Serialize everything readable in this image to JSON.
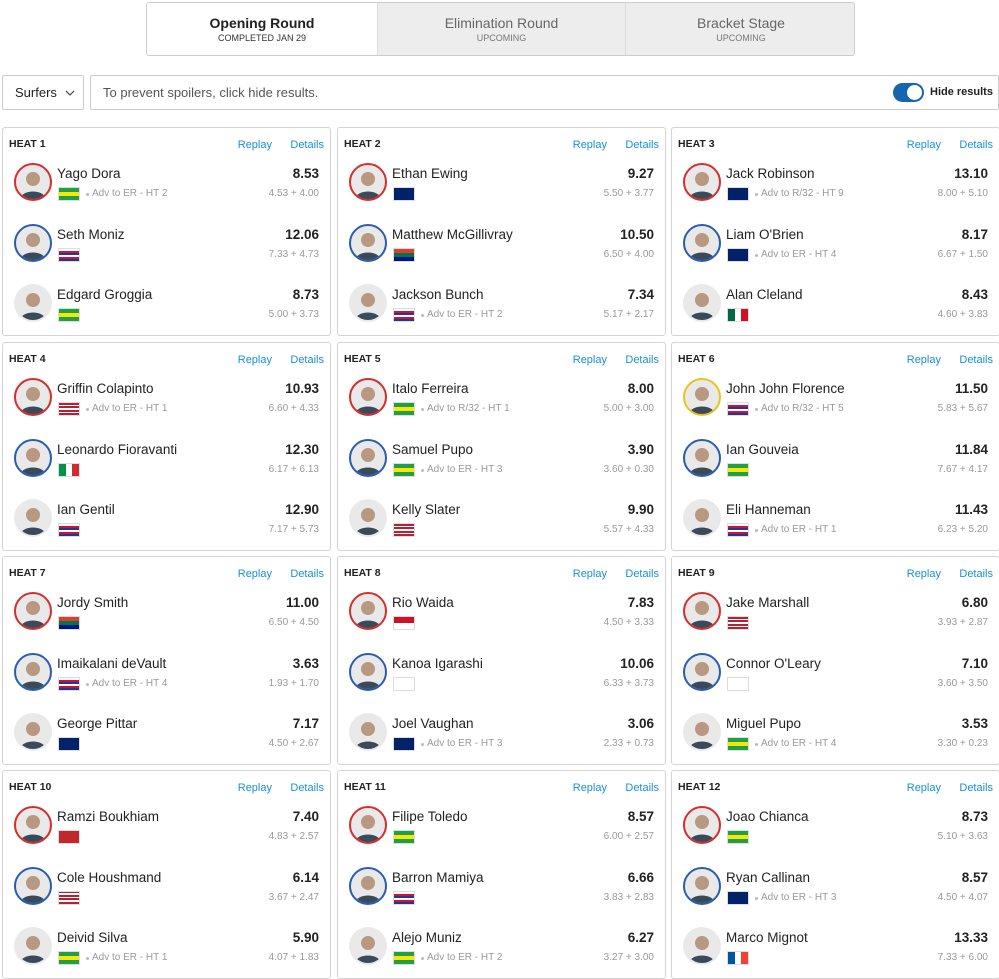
{
  "tabs": [
    {
      "title": "Opening Round",
      "status": "COMPLETED JAN 29"
    },
    {
      "title": "Elimination Round",
      "status": "UPCOMING"
    },
    {
      "title": "Bracket Stage",
      "status": "UPCOMING"
    }
  ],
  "filter": {
    "dropdown": "Surfers",
    "message": "To prevent spoilers, click hide results.",
    "toggle": "Hide results"
  },
  "replay": "Replay",
  "details": "Details",
  "heats": [
    {
      "title": "HEAT 1",
      "surfers": [
        {
          "name": "Yago Dora",
          "note": "Adv to ER - HT 2",
          "score": "8.53",
          "waves": "4.53 + 4.00",
          "flag": [
            "#229e45",
            "#f8e509",
            "#229e45"
          ],
          "ring": "#d62d2d"
        },
        {
          "name": "Seth Moniz",
          "score": "12.06",
          "waves": "7.33 + 4.73",
          "flag": [
            "#ffffff",
            "#d0103a",
            "#1e3a8a",
            "#ffffff",
            "#d0103a",
            "#1e3a8a"
          ],
          "ring": "#2a5db0"
        },
        {
          "name": "Edgard Groggia",
          "score": "8.73",
          "waves": "5.00 + 3.73",
          "flag": [
            "#229e45",
            "#f8e509",
            "#229e45"
          ]
        }
      ]
    },
    {
      "title": "HEAT 2",
      "surfers": [
        {
          "name": "Ethan Ewing",
          "score": "9.27",
          "waves": "5.50 + 3.77",
          "flag": [
            "#012169"
          ],
          "ring": "#d62d2d"
        },
        {
          "name": "Matthew McGillivray",
          "score": "10.50",
          "waves": "6.50 + 4.00",
          "flag": [
            "#e03c31",
            "#007749",
            "#001489"
          ],
          "ring": "#2a5db0"
        },
        {
          "name": "Jackson Bunch",
          "note": "Adv to ER - HT 2",
          "score": "7.34",
          "waves": "5.17 + 2.17",
          "flag": [
            "#ffffff",
            "#d0103a",
            "#1e3a8a",
            "#ffffff",
            "#d0103a",
            "#1e3a8a"
          ]
        }
      ]
    },
    {
      "title": "HEAT 3",
      "surfers": [
        {
          "name": "Jack Robinson",
          "note": "Adv to R/32 - HT 9",
          "score": "13.10",
          "waves": "8.00 + 5.10",
          "flag": [
            "#012169"
          ],
          "ring": "#d62d2d"
        },
        {
          "name": "Liam O'Brien",
          "note": "Adv to ER - HT 4",
          "score": "8.17",
          "waves": "6.67 + 1.50",
          "flag": [
            "#012169"
          ],
          "ring": "#2a5db0"
        },
        {
          "name": "Alan Cleland",
          "score": "8.43",
          "waves": "4.60 + 3.83",
          "flag": [
            "#006847",
            "#ffffff",
            "#ce1126"
          ],
          "flag_v": true
        }
      ]
    },
    {
      "title": "HEAT 4",
      "surfers": [
        {
          "name": "Griffin Colapinto",
          "note": "Adv to ER - HT 1",
          "score": "10.93",
          "waves": "6.60 + 4.33",
          "flag": [
            "#b22234",
            "#ffffff",
            "#b22234",
            "#ffffff",
            "#b22234",
            "#ffffff",
            "#b22234"
          ],
          "ring": "#d62d2d"
        },
        {
          "name": "Leonardo Fioravanti",
          "score": "12.30",
          "waves": "6.17 + 6.13",
          "flag": [
            "#009246",
            "#ffffff",
            "#ce2b37"
          ],
          "flag_v": true,
          "ring": "#2a5db0"
        },
        {
          "name": "Ian Gentil",
          "score": "12.90",
          "waves": "7.17 + 5.73",
          "flag": [
            "#ffffff",
            "#d0103a",
            "#1e3a8a",
            "#ffffff",
            "#d0103a",
            "#1e3a8a"
          ]
        }
      ]
    },
    {
      "title": "HEAT 5",
      "surfers": [
        {
          "name": "Italo Ferreira",
          "note": "Adv to R/32 - HT 1",
          "score": "8.00",
          "waves": "5.00 + 3.00",
          "flag": [
            "#229e45",
            "#f8e509",
            "#229e45"
          ],
          "ring": "#d62d2d"
        },
        {
          "name": "Samuel Pupo",
          "note": "Adv to ER - HT 3",
          "score": "3.90",
          "waves": "3.60 + 0.30",
          "flag": [
            "#229e45",
            "#f8e509",
            "#229e45"
          ],
          "ring": "#2a5db0"
        },
        {
          "name": "Kelly Slater",
          "score": "9.90",
          "waves": "5.57 + 4.33",
          "flag": [
            "#b22234",
            "#ffffff",
            "#b22234",
            "#ffffff",
            "#b22234",
            "#ffffff",
            "#b22234"
          ]
        }
      ]
    },
    {
      "title": "HEAT 6",
      "surfers": [
        {
          "name": "John John Florence",
          "note": "Adv to R/32 - HT 5",
          "score": "11.50",
          "waves": "5.83 + 5.67",
          "flag": [
            "#ffffff",
            "#d0103a",
            "#1e3a8a",
            "#ffffff",
            "#d0103a",
            "#1e3a8a"
          ],
          "ring": "#e8c51c"
        },
        {
          "name": "Ian Gouveia",
          "score": "11.84",
          "waves": "7.67 + 4.17",
          "flag": [
            "#229e45",
            "#f8e509",
            "#229e45"
          ],
          "ring": "#2a5db0"
        },
        {
          "name": "Eli Hanneman",
          "note": "Adv to ER - HT 1",
          "score": "11.43",
          "waves": "6.23 + 5.20",
          "flag": [
            "#ffffff",
            "#d0103a",
            "#1e3a8a",
            "#ffffff",
            "#d0103a",
            "#1e3a8a"
          ]
        }
      ]
    },
    {
      "title": "HEAT 7",
      "surfers": [
        {
          "name": "Jordy Smith",
          "score": "11.00",
          "waves": "6.50 + 4.50",
          "flag": [
            "#e03c31",
            "#007749",
            "#001489"
          ],
          "ring": "#d62d2d"
        },
        {
          "name": "Imaikalani deVault",
          "note": "Adv to ER - HT 4",
          "score": "3.63",
          "waves": "1.93 + 1.70",
          "flag": [
            "#ffffff",
            "#d0103a",
            "#1e3a8a",
            "#ffffff",
            "#d0103a",
            "#1e3a8a"
          ],
          "ring": "#2a5db0"
        },
        {
          "name": "George Pittar",
          "score": "7.17",
          "waves": "4.50 + 2.67",
          "flag": [
            "#012169"
          ]
        }
      ]
    },
    {
      "title": "HEAT 8",
      "surfers": [
        {
          "name": "Rio Waida",
          "score": "7.83",
          "waves": "4.50 + 3.33",
          "flag": [
            "#ce1126",
            "#ffffff"
          ],
          "ring": "#d62d2d"
        },
        {
          "name": "Kanoa Igarashi",
          "score": "10.06",
          "waves": "6.33 + 3.73",
          "flag": [
            "#ffffff"
          ],
          "ring": "#2a5db0"
        },
        {
          "name": "Joel Vaughan",
          "note": "Adv to ER - HT 3",
          "score": "3.06",
          "waves": "2.33 + 0.73",
          "flag": [
            "#012169"
          ]
        }
      ]
    },
    {
      "title": "HEAT 9",
      "surfers": [
        {
          "name": "Jake Marshall",
          "score": "6.80",
          "waves": "3.93 + 2.87",
          "flag": [
            "#b22234",
            "#ffffff",
            "#b22234",
            "#ffffff",
            "#b22234",
            "#ffffff",
            "#b22234"
          ],
          "ring": "#d62d2d"
        },
        {
          "name": "Connor O'Leary",
          "score": "7.10",
          "waves": "3.60 + 3.50",
          "flag": [
            "#ffffff"
          ],
          "ring": "#2a5db0"
        },
        {
          "name": "Miguel Pupo",
          "note": "Adv to ER - HT 4",
          "score": "3.53",
          "waves": "3.30 + 0.23",
          "flag": [
            "#229e45",
            "#f8e509",
            "#229e45"
          ]
        }
      ]
    },
    {
      "title": "HEAT 10",
      "surfers": [
        {
          "name": "Ramzi Boukhiam",
          "score": "7.40",
          "waves": "4.83 + 2.57",
          "flag": [
            "#c1272d"
          ],
          "ring": "#d62d2d"
        },
        {
          "name": "Cole Houshmand",
          "score": "6.14",
          "waves": "3.67 + 2.47",
          "flag": [
            "#b22234",
            "#ffffff",
            "#b22234",
            "#ffffff",
            "#b22234",
            "#ffffff",
            "#b22234"
          ],
          "ring": "#2a5db0"
        },
        {
          "name": "Deivid Silva",
          "note": "Adv to ER - HT 1",
          "score": "5.90",
          "waves": "4.07 + 1.83",
          "flag": [
            "#229e45",
            "#f8e509",
            "#229e45"
          ]
        }
      ]
    },
    {
      "title": "HEAT 11",
      "surfers": [
        {
          "name": "Filipe Toledo",
          "score": "8.57",
          "waves": "6.00 + 2.57",
          "flag": [
            "#229e45",
            "#f8e509",
            "#229e45"
          ],
          "ring": "#d62d2d"
        },
        {
          "name": "Barron Mamiya",
          "score": "6.66",
          "waves": "3.83 + 2.83",
          "flag": [
            "#ffffff",
            "#d0103a",
            "#1e3a8a",
            "#ffffff",
            "#d0103a",
            "#1e3a8a"
          ],
          "ring": "#2a5db0"
        },
        {
          "name": "Alejo Muniz",
          "note": "Adv to ER - HT 2",
          "score": "6.27",
          "waves": "3.27 + 3.00",
          "flag": [
            "#229e45",
            "#f8e509",
            "#229e45"
          ]
        }
      ]
    },
    {
      "title": "HEAT 12",
      "surfers": [
        {
          "name": "Joao Chianca",
          "score": "8.73",
          "waves": "5.10 + 3.63",
          "flag": [
            "#229e45",
            "#f8e509",
            "#229e45"
          ],
          "ring": "#d62d2d"
        },
        {
          "name": "Ryan Callinan",
          "note": "Adv to ER - HT 3",
          "score": "8.57",
          "waves": "4.50 + 4.07",
          "flag": [
            "#012169"
          ],
          "ring": "#2a5db0"
        },
        {
          "name": "Marco Mignot",
          "score": "13.33",
          "waves": "7.33 + 6.00",
          "flag": [
            "#0055a4",
            "#ffffff",
            "#ef4135"
          ],
          "flag_v": true
        }
      ]
    }
  ]
}
